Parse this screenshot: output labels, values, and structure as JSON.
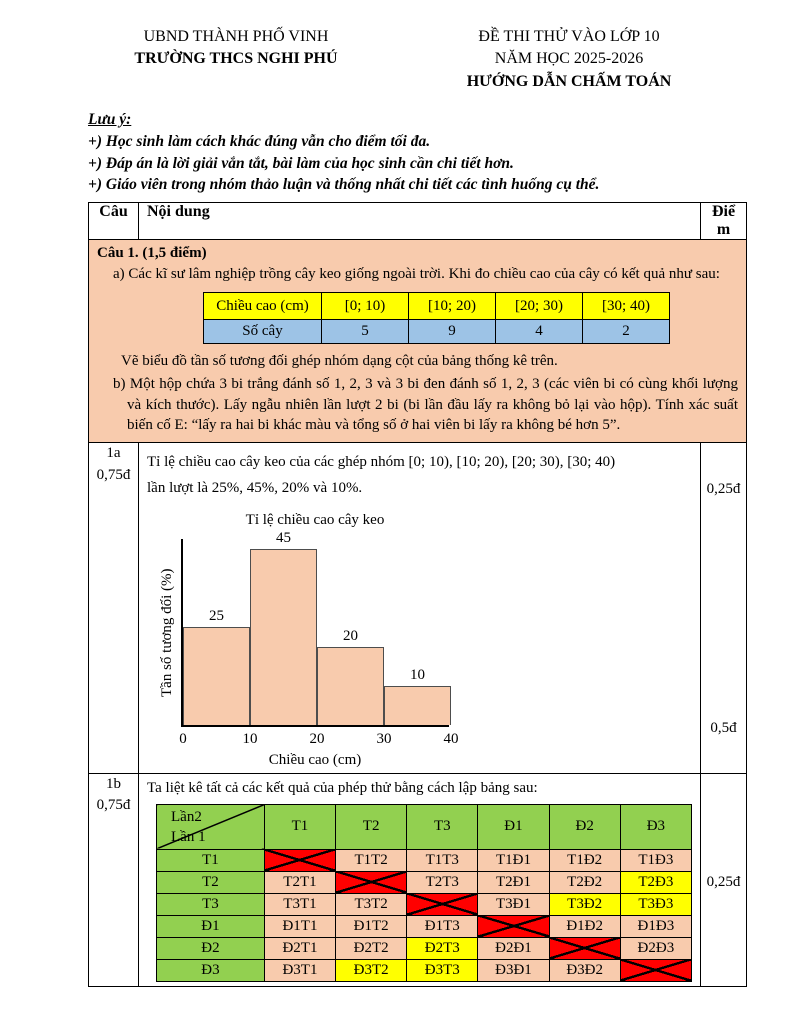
{
  "header": {
    "left_line1": "UBND THÀNH PHỐ VINH",
    "left_line2": "TRƯỜNG THCS NGHI PHÚ",
    "right_line1": "ĐỀ THI THỬ VÀO LỚP 10",
    "right_line2": "NĂM HỌC 2025-2026",
    "right_line3": "HƯỚNG DẪN CHẤM TOÁN"
  },
  "notes": {
    "title": "Lưu ý:",
    "items": [
      "+) Học sinh làm cách khác đúng vẫn cho điểm tối đa.",
      "+) Đáp án là lời giải vắn tắt, bài làm của học sinh cần chi tiết hơn.",
      "+) Giáo viên trong nhóm thảo luận và thống nhất chi tiết các tình huống cụ thể."
    ]
  },
  "table_headers": {
    "cau": "Câu",
    "noi_dung": "Nội dung",
    "diem": "Điểm"
  },
  "question1": {
    "title": "Câu 1. (1,5 điểm)",
    "part_a_text": "a) Các kĩ sư lâm nghiệp trồng cây keo giống ngoài trời. Khi đo chiều cao của cây có  kết quả như sau:",
    "height_table": {
      "row1_label": "Chiều cao (cm)",
      "row1_values": [
        "[0; 10)",
        "[10; 20)",
        "[20; 30)",
        "[30; 40)"
      ],
      "row2_label": "Số cây",
      "row2_values": [
        "5",
        "9",
        "4",
        "2"
      ]
    },
    "part_a_task": "Vẽ biểu đồ tần số tương đối ghép nhóm dạng cột của bảng thống kê trên.",
    "part_b_text": "b) Một hộp chứa 3 bi trắng đánh số 1, 2, 3 và 3 bi đen đánh số 1, 2, 3 (các viên bi có cùng khối lượng và kích thước). Lấy ngẫu nhiên lần lượt 2 bi (bi lần đầu lấy ra không bỏ lại vào hộp). Tính xác suất biến cố E: “lấy ra hai bi khác màu và tổng số ở hai viên bi lấy ra không bé hơn 5”."
  },
  "answer_1a": {
    "label": "1a\n0,75đ",
    "text": "Tỉ lệ chiều cao cây keo của các ghép nhóm [0; 10), [10; 20), [20; 30), [30; 40)\nlần lượt là 25%, 45%, 20% và 10%.",
    "points_text": "0,25đ",
    "points_chart": "0,5đ"
  },
  "chart_data": {
    "type": "bar",
    "title": "Tỉ lệ chiều cao cây keo",
    "xlabel": "Chiều cao (cm)",
    "ylabel": "Tần số tương đối (%)",
    "categories": [
      "[0; 10)",
      "[10; 20)",
      "[20; 30)",
      "[30; 40)"
    ],
    "values": [
      25,
      45,
      20,
      10
    ],
    "x_ticks": [
      "0",
      "10",
      "20",
      "30",
      "40"
    ],
    "ylim": [
      0,
      48
    ],
    "bar_color": "#F8CBAD",
    "grid": false,
    "legend": false
  },
  "answer_1b": {
    "label": "1b\n0,75đ",
    "intro": "Ta liệt kê tất cả các kết quả của phép thử bằng cách lập bảng sau:",
    "points": "0,25đ",
    "outcome_table": {
      "corner_top": "Lần2",
      "corner_bottom": "Lần 1",
      "col_headers": [
        "T1",
        "T2",
        "T3",
        "Đ1",
        "Đ2",
        "Đ3"
      ],
      "rows": [
        {
          "header": "T1",
          "cells": [
            {
              "x": true
            },
            {
              "v": "T1T2"
            },
            {
              "v": "T1T3"
            },
            {
              "v": "T1Đ1"
            },
            {
              "v": "T1Đ2"
            },
            {
              "v": "T1Đ3"
            }
          ]
        },
        {
          "header": "T2",
          "cells": [
            {
              "v": "T2T1"
            },
            {
              "x": true
            },
            {
              "v": "T2T3"
            },
            {
              "v": "T2Đ1"
            },
            {
              "v": "T2Đ2"
            },
            {
              "v": "T2Đ3",
              "hl": true
            }
          ]
        },
        {
          "header": "T3",
          "cells": [
            {
              "v": "T3T1"
            },
            {
              "v": "T3T2"
            },
            {
              "x": true
            },
            {
              "v": "T3Đ1"
            },
            {
              "v": "T3Đ2",
              "hl": true
            },
            {
              "v": "T3Đ3",
              "hl": true
            }
          ]
        },
        {
          "header": "Đ1",
          "cells": [
            {
              "v": "Đ1T1"
            },
            {
              "v": "Đ1T2"
            },
            {
              "v": "Đ1T3"
            },
            {
              "x": true
            },
            {
              "v": "Đ1Đ2"
            },
            {
              "v": "Đ1Đ3"
            }
          ]
        },
        {
          "header": "Đ2",
          "cells": [
            {
              "v": "Đ2T1"
            },
            {
              "v": "Đ2T2"
            },
            {
              "v": "Đ2T3",
              "hl": true
            },
            {
              "v": "Đ2Đ1"
            },
            {
              "x": true
            },
            {
              "v": "Đ2Đ3"
            }
          ]
        },
        {
          "header": "Đ3",
          "cells": [
            {
              "v": "Đ3T1"
            },
            {
              "v": "Đ3T2",
              "hl": true
            },
            {
              "v": "Đ3T3",
              "hl": true
            },
            {
              "v": "Đ3Đ1"
            },
            {
              "v": "Đ3Đ2"
            },
            {
              "x": true
            }
          ]
        }
      ]
    }
  },
  "colors": {
    "peach": "#F8CBAD",
    "yellow": "#FFFF00",
    "blue": "#9DC3E6",
    "green": "#92D050",
    "red": "#FF0000"
  }
}
